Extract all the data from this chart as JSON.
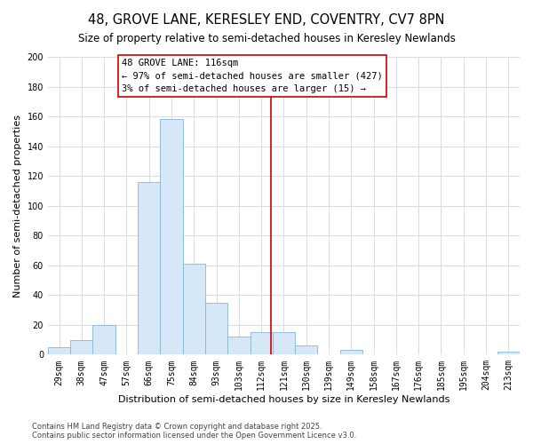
{
  "title": "48, GROVE LANE, KERESLEY END, COVENTRY, CV7 8PN",
  "subtitle": "Size of property relative to semi-detached houses in Keresley Newlands",
  "xlabel": "Distribution of semi-detached houses by size in Keresley Newlands",
  "ylabel": "Number of semi-detached properties",
  "bin_labels": [
    "29sqm",
    "38sqm",
    "47sqm",
    "57sqm",
    "66sqm",
    "75sqm",
    "84sqm",
    "93sqm",
    "103sqm",
    "112sqm",
    "121sqm",
    "130sqm",
    "139sqm",
    "149sqm",
    "158sqm",
    "167sqm",
    "176sqm",
    "185sqm",
    "195sqm",
    "204sqm",
    "213sqm"
  ],
  "bar_values": [
    5,
    10,
    20,
    0,
    116,
    158,
    61,
    35,
    12,
    15,
    15,
    6,
    0,
    3,
    0,
    0,
    0,
    0,
    0,
    0,
    2
  ],
  "bar_color": "#d6e8f7",
  "bar_edge_color": "#8ab4d8",
  "highlight_line_color": "#cc0000",
  "annotation_title": "48 GROVE LANE: 116sqm",
  "annotation_line1": "← 97% of semi-detached houses are smaller (427)",
  "annotation_line2": "3% of semi-detached houses are larger (15) →",
  "ylim": [
    0,
    200
  ],
  "yticks": [
    0,
    20,
    40,
    60,
    80,
    100,
    120,
    140,
    160,
    180,
    200
  ],
  "footer_line1": "Contains HM Land Registry data © Crown copyright and database right 2025.",
  "footer_line2": "Contains public sector information licensed under the Open Government Licence v3.0.",
  "bg_color": "#ffffff",
  "plot_bg_color": "#ffffff",
  "grid_color": "#dddddd",
  "title_fontsize": 10.5,
  "subtitle_fontsize": 8.5,
  "axis_label_fontsize": 8,
  "tick_fontsize": 7,
  "annotation_fontsize": 7.5,
  "footer_fontsize": 6
}
